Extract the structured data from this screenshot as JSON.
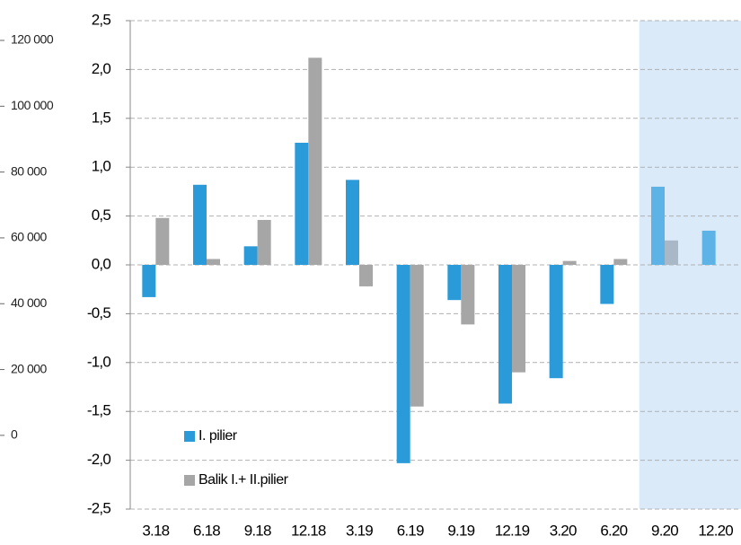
{
  "chart_data": {
    "type": "bar",
    "categories": [
      "3.18",
      "6.18",
      "9.18",
      "12.18",
      "3.19",
      "6.19",
      "9.19",
      "12.19",
      "3.20",
      "6.20",
      "9.20",
      "12.20"
    ],
    "series": [
      {
        "name": "I. pilier",
        "color": "#2a9ad8",
        "shaded_color": "#5db3e6",
        "values": [
          -0.33,
          0.82,
          0.19,
          1.25,
          0.87,
          -2.03,
          -0.36,
          -1.42,
          -1.16,
          -0.4,
          0.8,
          0.35
        ]
      },
      {
        "name": "Balik I.+ II.pilier",
        "color": "#a6a6a6",
        "shaded_color": "#a9b8c6",
        "values": [
          0.48,
          0.06,
          0.46,
          2.12,
          -0.22,
          -1.45,
          -0.61,
          -1.1,
          0.04,
          0.06,
          0.25,
          null
        ]
      }
    ],
    "ylim": [
      -2.5,
      2.5
    ],
    "yticks": [
      {
        "value": -2.5,
        "label": "-2,5"
      },
      {
        "value": -2.0,
        "label": "-2,0"
      },
      {
        "value": -1.5,
        "label": "-1,5"
      },
      {
        "value": -1.0,
        "label": "-1,0"
      },
      {
        "value": -0.5,
        "label": "-0,5"
      },
      {
        "value": 0,
        "label": "0,0"
      },
      {
        "value": 0.5,
        "label": "0,5"
      },
      {
        "value": 1.0,
        "label": "1,0"
      },
      {
        "value": 1.5,
        "label": "1,5"
      },
      {
        "value": 2.0,
        "label": "2,0"
      },
      {
        "value": 2.5,
        "label": "2,5"
      }
    ],
    "y2lim": [
      -22400,
      126000
    ],
    "y2ticks": [
      0,
      {
        "value": 20000,
        "label": "20 000"
      },
      {
        "value": 40000,
        "label": "40 000"
      },
      {
        "value": 60000,
        "label": "60 000"
      },
      {
        "value": 80000,
        "label": "80 000"
      },
      {
        "value": 100000,
        "label": "100 000"
      },
      {
        "value": 120000,
        "label": "120 000"
      }
    ],
    "grid": true,
    "shaded_categories": [
      "9.20",
      "12.20"
    ],
    "shade_color": "#dbeaf8",
    "legend": "lower left"
  }
}
